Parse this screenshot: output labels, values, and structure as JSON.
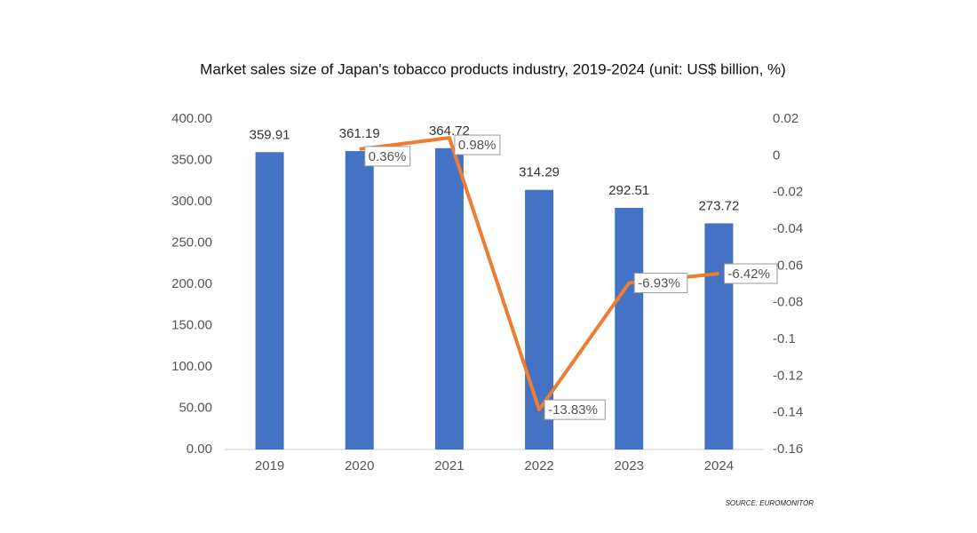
{
  "chart_data": {
    "type": "bar+line",
    "title": "Market sales size of Japan's tobacco products industry, 2019-2024 (unit: US$ billion, %)",
    "source": "SOURCE: EUROMONITOR",
    "categories": [
      "2019",
      "2020",
      "2021",
      "2022",
      "2023",
      "2024"
    ],
    "series": [
      {
        "type": "bar",
        "color": "#4472c4",
        "values": [
          359.91,
          361.19,
          364.72,
          314.29,
          292.51,
          273.72
        ]
      },
      {
        "type": "line",
        "axis": "y2",
        "color": "#ed7d31",
        "values": [
          null,
          0.0036,
          0.0098,
          -0.1383,
          -0.0693,
          -0.0642
        ],
        "value_labels": [
          null,
          "0.36%",
          "0.98%",
          "-13.83%",
          "-6.93%",
          "-6.42%"
        ]
      }
    ],
    "ylim": [
      0,
      400
    ],
    "yticks": [
      {
        "value": 0,
        "label": "0.00"
      },
      {
        "value": 50,
        "label": "50.00"
      },
      {
        "value": 100,
        "label": "100.00"
      },
      {
        "value": 150,
        "label": "150.00"
      },
      {
        "value": 200,
        "label": "200.00"
      },
      {
        "value": 250,
        "label": "250.00"
      },
      {
        "value": 300,
        "label": "300.00"
      },
      {
        "value": 350,
        "label": "350.00"
      },
      {
        "value": 400,
        "label": "400.00"
      }
    ],
    "y2lim": [
      -0.16,
      0.02
    ],
    "y2ticks": [
      0.02,
      0,
      -0.02,
      -0.04,
      -0.06,
      -0.08,
      -0.1,
      -0.12,
      -0.14,
      -0.16
    ]
  }
}
